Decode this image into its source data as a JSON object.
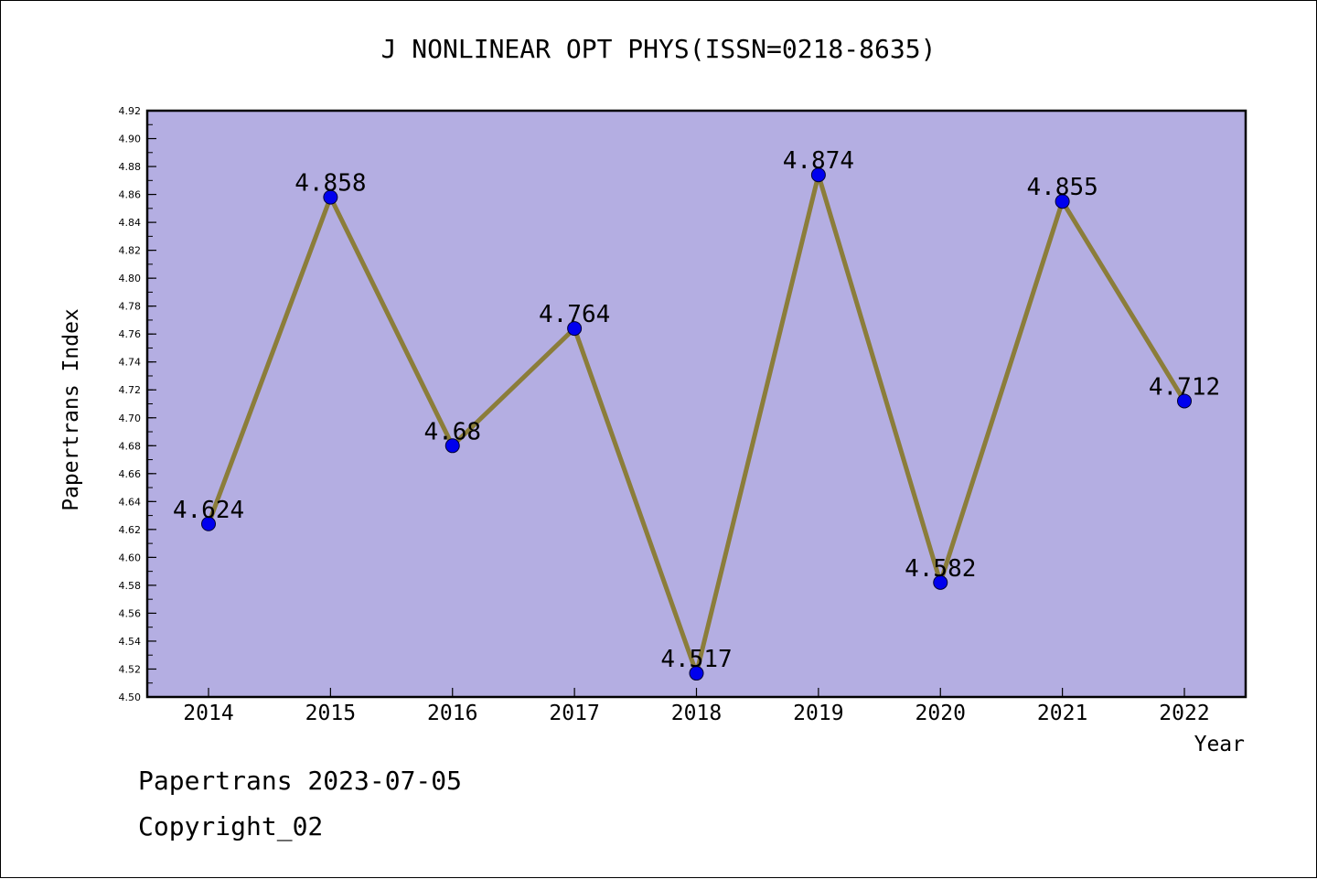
{
  "chart_data": {
    "type": "line",
    "title": "J NONLINEAR OPT PHYS(ISSN=0218-8635)",
    "xlabel": "Year",
    "ylabel": "Papertrans Index",
    "categories": [
      "2014",
      "2015",
      "2016",
      "2017",
      "2018",
      "2019",
      "2020",
      "2021",
      "2022"
    ],
    "values": [
      4.624,
      4.858,
      4.68,
      4.764,
      4.517,
      4.874,
      4.582,
      4.855,
      4.712
    ],
    "data_labels": [
      "4.624",
      "4.858",
      "4.68",
      "4.764",
      "4.517",
      "4.874",
      "4.582",
      "4.855",
      "4.712"
    ],
    "ylim": [
      4.5,
      4.92
    ],
    "yticks": [
      "4.50",
      "4.52",
      "4.54",
      "4.56",
      "4.58",
      "4.60",
      "4.62",
      "4.64",
      "4.66",
      "4.68",
      "4.70",
      "4.72",
      "4.74",
      "4.76",
      "4.78",
      "4.80",
      "4.82",
      "4.84",
      "4.86",
      "4.88",
      "4.90",
      "4.92"
    ],
    "grid": false,
    "legend": "none",
    "colors": {
      "plot_background": "#b4aee2",
      "line": "#8b7d3a",
      "marker": "#0000ee"
    }
  },
  "footer": {
    "line1": "Papertrans 2023-07-05",
    "line2": "Copyright_02"
  }
}
